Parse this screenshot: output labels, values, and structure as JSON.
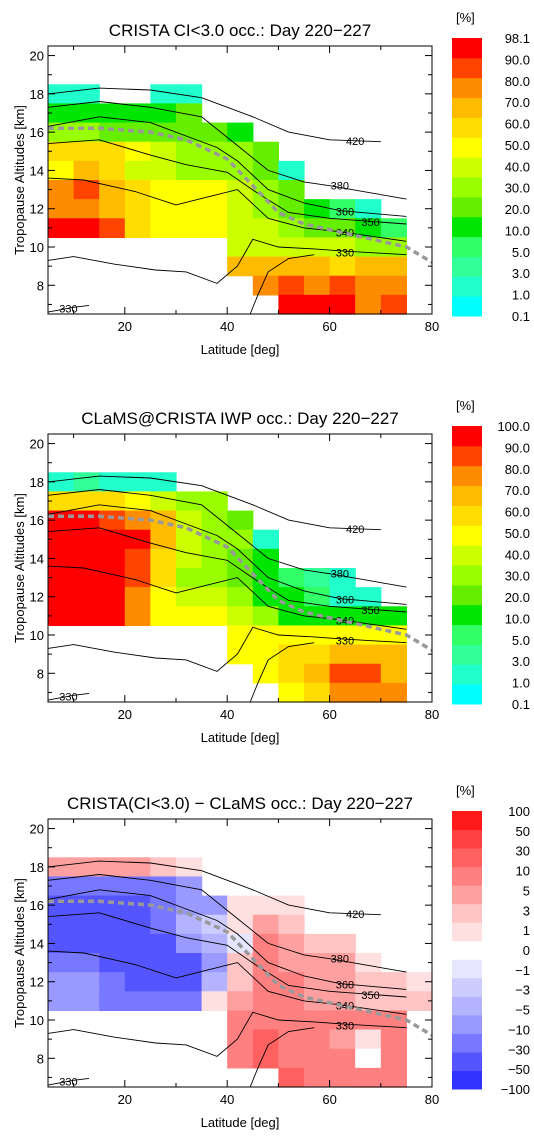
{
  "chart_data": [
    {
      "type": "heatmap",
      "title": "CRISTA CI<3.0 occ.:  Day 220−227",
      "xlabel": "Latitude [deg]",
      "ylabel": "Tropopause Altitudes [km]",
      "xlim": [
        5,
        80
      ],
      "ylim": [
        6.5,
        20.5
      ],
      "xticks": [
        "20",
        "40",
        "60",
        "80"
      ],
      "yticks": [
        "8",
        "10",
        "12",
        "14",
        "16",
        "18",
        "20"
      ],
      "colorbar": {
        "unit": "[%]",
        "labels": [
          "0.1",
          "1.0",
          "3.0",
          "5.0",
          "10.0",
          "20.0",
          "30.0",
          "40.0",
          "50.0",
          "60.0",
          "70.0",
          "80.0",
          "90.0",
          "98.1"
        ],
        "colors": [
          "#00ffff",
          "#20ffcc",
          "#33ff99",
          "#33ff66",
          "#00e600",
          "#66ee00",
          "#99ff00",
          "#ccff00",
          "#ffff00",
          "#ffdd00",
          "#ffbb00",
          "#ff8c00",
          "#ff4400",
          "#ff0000"
        ]
      },
      "cell_size": [
        5,
        1
      ],
      "rows": [
        {
          "y": 18,
          "x0": 5,
          "levels": [
            1,
            1,
            -1,
            -1,
            1,
            1
          ]
        },
        {
          "y": 17,
          "x0": 5,
          "levels": [
            4,
            4,
            4,
            4,
            4,
            5
          ]
        },
        {
          "y": 16,
          "x0": 5,
          "levels": [
            6,
            6,
            5,
            5,
            5,
            5,
            5,
            4
          ]
        },
        {
          "y": 15,
          "x0": 5,
          "levels": [
            9,
            9,
            9,
            8,
            7,
            6,
            6,
            6,
            5
          ]
        },
        {
          "y": 14,
          "x0": 5,
          "levels": [
            8,
            10,
            9,
            7,
            7,
            6,
            6,
            6,
            5,
            1
          ]
        },
        {
          "y": 13,
          "x0": 5,
          "levels": [
            11,
            12,
            10,
            9,
            8,
            8,
            8,
            7,
            6,
            5
          ]
        },
        {
          "y": 12,
          "x0": 5,
          "levels": [
            11,
            11,
            10,
            9,
            8,
            8,
            8,
            7,
            6,
            5,
            4,
            3,
            1
          ]
        },
        {
          "y": 11,
          "x0": 5,
          "levels": [
            13,
            13,
            12,
            9,
            8,
            8,
            8,
            7,
            7,
            6,
            5,
            5,
            4,
            3
          ]
        },
        {
          "y": 10,
          "x0": 40,
          "levels": [
            7,
            7,
            7,
            7,
            7,
            6,
            6
          ]
        },
        {
          "y": 9,
          "x0": 40,
          "levels": [
            10,
            10,
            10,
            10,
            9,
            10,
            10
          ]
        },
        {
          "y": 8,
          "x0": 40,
          "levels": [
            -1,
            11,
            12,
            11,
            12,
            11,
            11
          ]
        },
        {
          "y": 7,
          "x0": 40,
          "levels": [
            -1,
            -1,
            13,
            13,
            13,
            11,
            12
          ]
        },
        {
          "y": 6,
          "x0": 40,
          "levels": [
            -1,
            -1,
            -1,
            -1,
            13,
            11,
            12
          ]
        }
      ],
      "contour_labels": [
        {
          "text": "420",
          "x": 65,
          "y": 15.55
        },
        {
          "text": "380",
          "x": 62,
          "y": 13.2
        },
        {
          "text": "360",
          "x": 63,
          "y": 11.85
        },
        {
          "text": "350",
          "x": 68,
          "y": 11.3
        },
        {
          "text": "340",
          "x": 63,
          "y": 10.75
        },
        {
          "text": "330",
          "x": 63,
          "y": 9.7
        },
        {
          "text": "330",
          "x": 9,
          "y": 6.8
        }
      ]
    },
    {
      "type": "heatmap",
      "title": "CLaMS@CRISTA IWP occ.:  Day 220−227",
      "xlabel": "Latitude [deg]",
      "ylabel": "Tropopause Altitudes [km]",
      "xlim": [
        5,
        80
      ],
      "ylim": [
        6.5,
        20.5
      ],
      "xticks": [
        "20",
        "40",
        "60",
        "80"
      ],
      "yticks": [
        "8",
        "10",
        "12",
        "14",
        "16",
        "18",
        "20"
      ],
      "colorbar": {
        "unit": "[%]",
        "labels": [
          "0.1",
          "1.0",
          "3.0",
          "5.0",
          "10.0",
          "20.0",
          "30.0",
          "40.0",
          "50.0",
          "60.0",
          "70.0",
          "80.0",
          "90.0",
          "100.0"
        ],
        "colors": [
          "#00ffff",
          "#20ffcc",
          "#33ff99",
          "#33ff66",
          "#00e600",
          "#66ee00",
          "#99ff00",
          "#ccff00",
          "#ffff00",
          "#ffdd00",
          "#ffbb00",
          "#ff8c00",
          "#ff4400",
          "#ff0000"
        ]
      },
      "cell_size": [
        5,
        1
      ],
      "rows": [
        {
          "y": 18,
          "x0": 5,
          "levels": [
            1,
            2,
            1,
            1,
            1
          ]
        },
        {
          "y": 17,
          "x0": 5,
          "levels": [
            9,
            9,
            9,
            8,
            7,
            6,
            6
          ]
        },
        {
          "y": 16,
          "x0": 5,
          "levels": [
            13,
            13,
            12,
            11,
            10,
            7,
            6,
            5
          ]
        },
        {
          "y": 15,
          "x0": 5,
          "levels": [
            13,
            13,
            13,
            13,
            10,
            7,
            6,
            6,
            1
          ]
        },
        {
          "y": 14,
          "x0": 5,
          "levels": [
            13,
            13,
            13,
            12,
            9,
            7,
            6,
            5,
            4
          ]
        },
        {
          "y": 13,
          "x0": 5,
          "levels": [
            13,
            13,
            13,
            12,
            9,
            6,
            6,
            5,
            4,
            3,
            2,
            1
          ]
        },
        {
          "y": 12,
          "x0": 5,
          "levels": [
            13,
            13,
            13,
            11,
            8,
            7,
            7,
            6,
            4,
            4,
            3,
            1,
            1
          ]
        },
        {
          "y": 11,
          "x0": 5,
          "levels": [
            13,
            13,
            13,
            11,
            8,
            8,
            8,
            7,
            6,
            4,
            4,
            4,
            4,
            4
          ]
        },
        {
          "y": 10,
          "x0": 40,
          "levels": [
            8,
            8,
            8,
            8,
            8,
            8,
            8
          ]
        },
        {
          "y": 9,
          "x0": 40,
          "levels": [
            8,
            8,
            9,
            9,
            10,
            10,
            10
          ]
        },
        {
          "y": 8,
          "x0": 40,
          "levels": [
            -1,
            8,
            9,
            10,
            12,
            12,
            10
          ]
        },
        {
          "y": 7,
          "x0": 40,
          "levels": [
            -1,
            -1,
            8,
            9,
            11,
            11,
            11
          ]
        },
        {
          "y": 6,
          "x0": 40,
          "levels": [
            -1,
            -1,
            -1,
            -1,
            12,
            11,
            12
          ]
        }
      ],
      "contour_labels": [
        {
          "text": "420",
          "x": 65,
          "y": 15.55
        },
        {
          "text": "380",
          "x": 62,
          "y": 13.2
        },
        {
          "text": "360",
          "x": 63,
          "y": 11.85
        },
        {
          "text": "350",
          "x": 68,
          "y": 11.3
        },
        {
          "text": "340",
          "x": 63,
          "y": 10.75
        },
        {
          "text": "330",
          "x": 63,
          "y": 9.7
        },
        {
          "text": "330",
          "x": 9,
          "y": 6.8
        }
      ]
    },
    {
      "type": "heatmap",
      "title": "CRISTA(CI<3.0) − CLaMS occ.:  Day 220−227",
      "xlabel": "Latitude [deg]",
      "ylabel": "Tropopause Altitudes [km]",
      "xlim": [
        5,
        80
      ],
      "ylim": [
        6.5,
        20.5
      ],
      "xticks": [
        "20",
        "40",
        "60",
        "80"
      ],
      "yticks": [
        "8",
        "10",
        "12",
        "14",
        "16",
        "18",
        "20"
      ],
      "colorbar": {
        "unit": "[%]",
        "labels": [
          "−100",
          "−50",
          "−30",
          "−10",
          "−5",
          "−3",
          "−1",
          "0",
          "1",
          "3",
          "5",
          "10",
          "30",
          "50",
          "100"
        ],
        "colors": [
          "#3333ff",
          "#5555ff",
          "#7777ff",
          "#9999ff",
          "#b3b3ff",
          "#ccccff",
          "#e6e6ff",
          "#ffffff",
          "#ffe0e0",
          "#ffc4c4",
          "#ffa0a0",
          "#ff8080",
          "#ff6060",
          "#ff4040",
          "#ff1a1a"
        ]
      },
      "cell_size": [
        5,
        1
      ],
      "rows": [
        {
          "y": 18,
          "x0": 5,
          "levels": [
            10,
            10,
            10,
            10,
            9,
            8
          ]
        },
        {
          "y": 17,
          "x0": 5,
          "levels": [
            2,
            2,
            2,
            2,
            2,
            3
          ]
        },
        {
          "y": 16,
          "x0": 5,
          "levels": [
            1,
            1,
            1,
            1,
            2,
            3,
            3,
            8,
            8,
            8
          ]
        },
        {
          "y": 15,
          "x0": 5,
          "levels": [
            1,
            1,
            1,
            1,
            2,
            4,
            5,
            8,
            10,
            9
          ]
        },
        {
          "y": 14,
          "x0": 5,
          "levels": [
            1,
            1,
            1,
            1,
            1,
            3,
            4,
            6,
            11,
            10,
            9,
            9
          ]
        },
        {
          "y": 13,
          "x0": 5,
          "levels": [
            2,
            2,
            1,
            1,
            1,
            1,
            3,
            9,
            11,
            10,
            10,
            10,
            8
          ]
        },
        {
          "y": 12,
          "x0": 5,
          "levels": [
            3,
            3,
            2,
            1,
            1,
            1,
            4,
            9,
            11,
            11,
            10,
            10,
            9,
            9,
            8
          ]
        },
        {
          "y": 11,
          "x0": 5,
          "levels": [
            3,
            3,
            2,
            2,
            2,
            2,
            8,
            10,
            11,
            11,
            10,
            10,
            9,
            9,
            9
          ]
        },
        {
          "y": 10,
          "x0": 40,
          "levels": [
            11,
            11,
            11,
            11,
            11,
            11,
            11
          ]
        },
        {
          "y": 9,
          "x0": 40,
          "levels": [
            11,
            12,
            11,
            11,
            10,
            8,
            11
          ]
        },
        {
          "y": 8,
          "x0": 40,
          "levels": [
            11,
            12,
            11,
            11,
            11,
            7,
            11
          ]
        },
        {
          "y": 7,
          "x0": 40,
          "levels": [
            -1,
            -1,
            12,
            11,
            11,
            11,
            11
          ]
        },
        {
          "y": 6,
          "x0": 40,
          "levels": [
            -1,
            -1,
            -1,
            -1,
            -1,
            11,
            11
          ]
        }
      ],
      "contour_labels": [
        {
          "text": "420",
          "x": 65,
          "y": 15.55
        },
        {
          "text": "380",
          "x": 62,
          "y": 13.2
        },
        {
          "text": "360",
          "x": 63,
          "y": 11.85
        },
        {
          "text": "350",
          "x": 68,
          "y": 11.3
        },
        {
          "text": "340",
          "x": 63,
          "y": 10.75
        },
        {
          "text": "330",
          "x": 63,
          "y": 9.7
        },
        {
          "text": "330",
          "x": 9,
          "y": 6.8
        }
      ]
    }
  ],
  "contours": [
    {
      "level": "420",
      "points": [
        [
          5,
          18.0
        ],
        [
          15,
          18.3
        ],
        [
          25,
          18.2
        ],
        [
          35,
          17.8
        ],
        [
          45,
          16.8
        ],
        [
          52,
          16.0
        ],
        [
          60,
          15.6
        ],
        [
          70,
          15.5
        ]
      ]
    },
    {
      "level": "380",
      "points": [
        [
          5,
          17.3
        ],
        [
          15,
          17.6
        ],
        [
          25,
          17.3
        ],
        [
          35,
          16.8
        ],
        [
          42,
          15.3
        ],
        [
          48,
          14.0
        ],
        [
          55,
          13.4
        ],
        [
          60,
          13.2
        ],
        [
          75,
          12.5
        ]
      ]
    },
    {
      "level": "360",
      "points": [
        [
          5,
          16.3
        ],
        [
          15,
          16.8
        ],
        [
          25,
          16.5
        ],
        [
          32,
          15.8
        ],
        [
          38,
          15.2
        ],
        [
          42,
          14.5
        ],
        [
          48,
          13.0
        ],
        [
          55,
          12.3
        ],
        [
          62,
          11.9
        ],
        [
          75,
          11.6
        ]
      ]
    },
    {
      "level": "350",
      "points": [
        [
          5,
          15.4
        ],
        [
          15,
          15.6
        ],
        [
          25,
          14.8
        ],
        [
          32,
          14.3
        ],
        [
          40,
          13.9
        ],
        [
          46,
          12.8
        ],
        [
          52,
          11.8
        ],
        [
          60,
          11.5
        ],
        [
          75,
          11.2
        ]
      ]
    },
    {
      "level": "340",
      "points": [
        [
          5,
          13.6
        ],
        [
          12,
          13.5
        ],
        [
          22,
          12.9
        ],
        [
          30,
          12.2
        ],
        [
          36,
          12.6
        ],
        [
          42,
          13.0
        ],
        [
          48,
          11.5
        ],
        [
          55,
          11.0
        ],
        [
          62,
          10.8
        ],
        [
          75,
          10.3
        ]
      ]
    },
    {
      "level": "330",
      "points": [
        [
          5,
          9.3
        ],
        [
          10,
          9.5
        ],
        [
          18,
          9.1
        ],
        [
          26,
          8.8
        ],
        [
          32,
          8.7
        ],
        [
          38,
          8.1
        ],
        [
          42,
          9.0
        ],
        [
          45,
          10.4
        ],
        [
          50,
          10.0
        ],
        [
          57,
          9.9
        ],
        [
          62,
          9.8
        ],
        [
          75,
          9.6
        ]
      ]
    },
    {
      "level": "330",
      "points": [
        [
          44.5,
          6.5
        ],
        [
          46,
          7.5
        ],
        [
          48,
          8.7
        ],
        [
          52,
          9.4
        ],
        [
          57,
          9.6
        ]
      ]
    },
    {
      "level": "330",
      "points": [
        [
          5,
          6.6
        ],
        [
          10,
          6.85
        ],
        [
          13,
          6.95
        ]
      ]
    }
  ],
  "tropopause_dashed": [
    [
      5,
      16.2
    ],
    [
      15,
      16.2
    ],
    [
      25,
      16.0
    ],
    [
      32,
      15.6
    ],
    [
      40,
      14.6
    ],
    [
      45,
      13.2
    ],
    [
      50,
      11.8
    ],
    [
      55,
      11.2
    ],
    [
      65,
      10.6
    ],
    [
      75,
      10.0
    ],
    [
      80,
      9.2
    ]
  ]
}
